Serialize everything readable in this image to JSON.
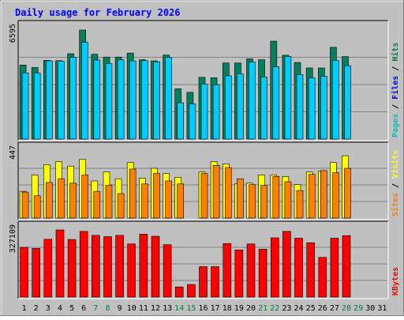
{
  "chart_data": {
    "type": "bar",
    "title": "Daily usage for February 2026",
    "x": [
      "1",
      "2",
      "3",
      "4",
      "5",
      "6",
      "7",
      "8",
      "9",
      "10",
      "11",
      "12",
      "13",
      "14",
      "15",
      "16",
      "17",
      "18",
      "19",
      "20",
      "21",
      "22",
      "23",
      "24",
      "25",
      "26",
      "27",
      "28",
      "29",
      "30",
      "31"
    ],
    "weekend_days": [
      "7",
      "8",
      "14",
      "15",
      "21",
      "22",
      "28",
      "29"
    ],
    "panels": [
      {
        "id": "pages-files-hits",
        "ymax_label": "6595",
        "ymax": 6595,
        "legend": [
          {
            "label": "Pages",
            "color": "#00c0c0"
          },
          {
            "label": "Files",
            "color": "#0000ff"
          },
          {
            "label": "Hits",
            "color": "#008040"
          }
        ],
        "series": [
          {
            "name": "Hits",
            "color": "#00805c",
            "values": [
              4480,
              4330,
              4760,
              4740,
              5160,
              6595,
              5130,
              4960,
              4960,
              5200,
              4800,
              4730,
              5080,
              3040,
              2830,
              3730,
              3710,
              4600,
              4600,
              4850,
              4800,
              5920,
              5070,
              4630,
              4300,
              4300,
              5550,
              4990,
              null,
              null,
              null
            ]
          },
          {
            "name": "Files",
            "color": "#00ccff",
            "values": [
              4000,
              3990,
              4730,
              4710,
              4940,
              5850,
              4780,
              4580,
              4790,
              4730,
              4740,
              4670,
              4930,
              2200,
              2120,
              3320,
              3280,
              3830,
              3940,
              4660,
              3750,
              4370,
              5000,
              3900,
              3700,
              3800,
              4760,
              4440,
              null,
              null,
              null
            ]
          }
        ]
      },
      {
        "id": "sites-visits",
        "ymax_label": "447",
        "ymax": 447,
        "legend": [
          {
            "label": "Sites",
            "color": "#ff8000"
          },
          {
            "label": "Visits",
            "color": "#ffff00"
          }
        ],
        "series": [
          {
            "name": "Visits",
            "color": "#ffff00",
            "values": [
              180,
              290,
              360,
              380,
              350,
              395,
              250,
              310,
              265,
              375,
              270,
              335,
              300,
              275,
              0,
              310,
              380,
              365,
              230,
              235,
              290,
              290,
              280,
              225,
              310,
              315,
              375,
              420,
              null,
              null,
              null
            ]
          },
          {
            "name": "Sites",
            "color": "#ff8000",
            "values": [
              175,
              150,
              240,
              265,
              235,
              290,
              180,
              220,
              165,
              330,
              230,
              300,
              250,
              230,
              0,
              300,
              355,
              340,
              265,
              225,
              220,
              280,
              245,
              185,
              295,
              320,
              305,
              335,
              null,
              null,
              null
            ]
          }
        ]
      },
      {
        "id": "kbytes",
        "ymax_label": "327109",
        "ymax": 327109,
        "legend": [
          {
            "label": "KBytes",
            "color": "#ff0000"
          }
        ],
        "series": [
          {
            "name": "KBytes",
            "color": "#ff0000",
            "values": [
              245000,
              240000,
              285000,
              331000,
              284000,
              324000,
              304000,
              298000,
              304000,
              262000,
              310000,
              300000,
              258000,
              50000,
              62000,
              150000,
              150000,
              264000,
              232000,
              262000,
              236000,
              292000,
              324000,
              290000,
              268000,
              196000,
              290000,
              303000,
              null,
              null,
              null
            ]
          }
        ]
      }
    ]
  }
}
